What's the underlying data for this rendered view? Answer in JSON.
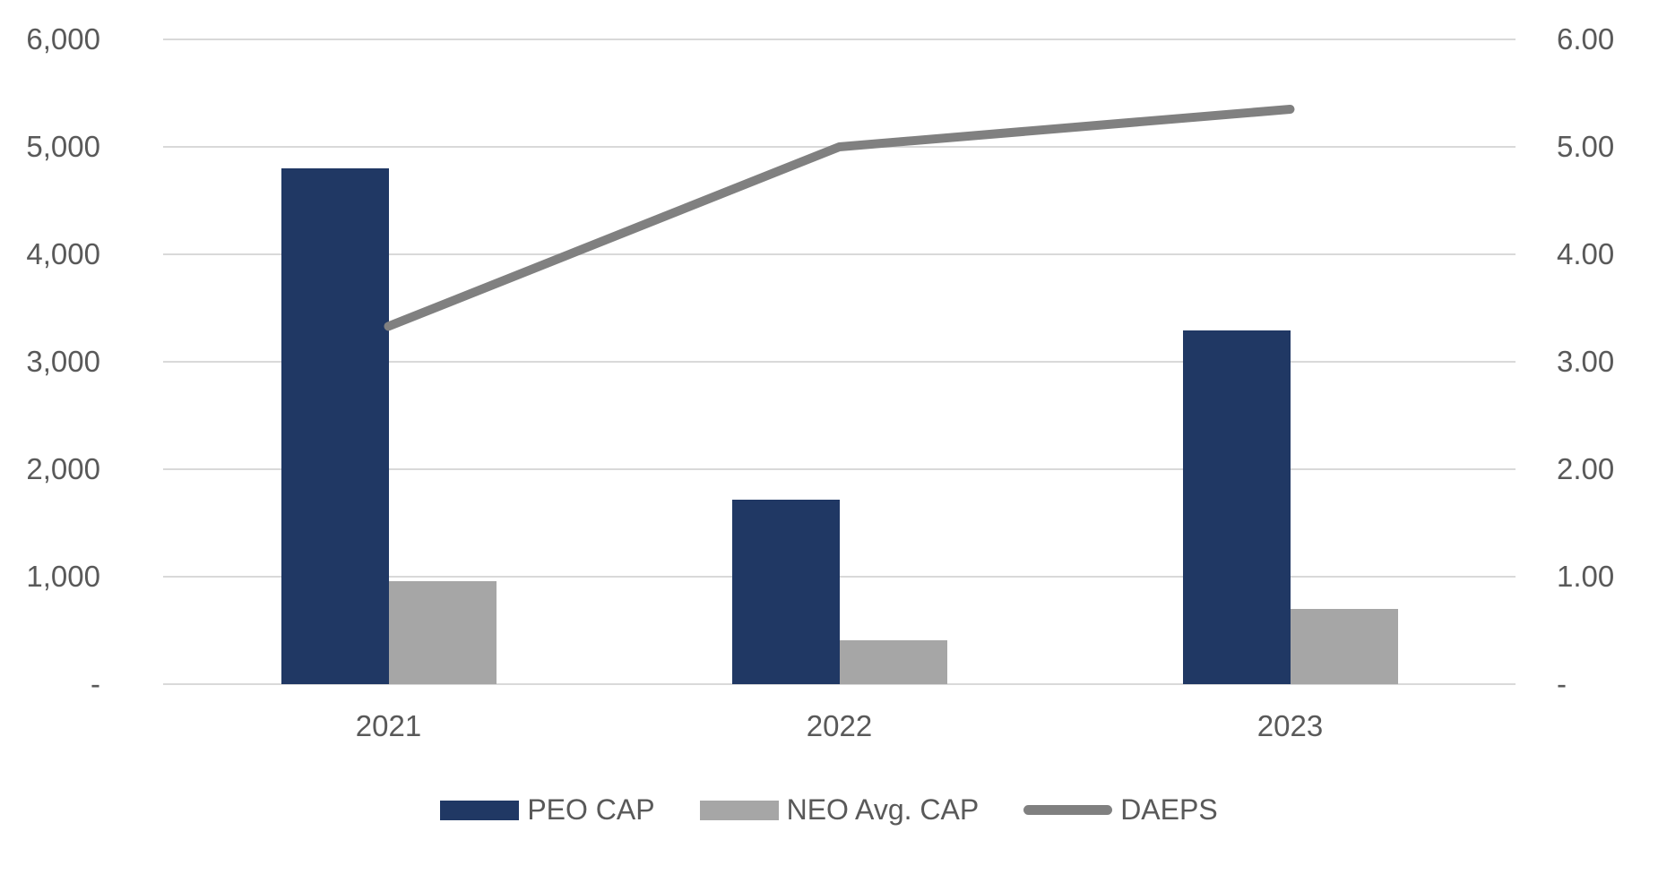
{
  "chart_data": {
    "type": "combo",
    "title": "",
    "categories": [
      "2021",
      "2022",
      "2023"
    ],
    "series": [
      {
        "name": "PEO CAP",
        "type": "bar",
        "axis": "left",
        "color": "#203864",
        "values": [
          4800,
          1720,
          3290
        ]
      },
      {
        "name": "NEO Avg. CAP",
        "type": "bar",
        "axis": "left",
        "color": "#A6A6A6",
        "values": [
          960,
          410,
          700
        ]
      },
      {
        "name": "DAEPS",
        "type": "line",
        "axis": "right",
        "color": "#808080",
        "values": [
          3.33,
          5.0,
          5.35
        ]
      }
    ],
    "left_axis": {
      "min": 0,
      "max": 6000,
      "step": 1000,
      "tick_labels": [
        "-",
        "1,000",
        "2,000",
        "3,000",
        "4,000",
        "5,000",
        "6,000"
      ]
    },
    "right_axis": {
      "min": 0,
      "max": 6,
      "step": 1,
      "tick_labels": [
        "-",
        "1.00",
        "2.00",
        "3.00",
        "4.00",
        "5.00",
        "6.00"
      ]
    },
    "grid": true,
    "legend_position": "bottom",
    "colors": {
      "gridline": "#D9D9D9",
      "axis_text": "#595959",
      "background": "#FFFFFF"
    }
  }
}
